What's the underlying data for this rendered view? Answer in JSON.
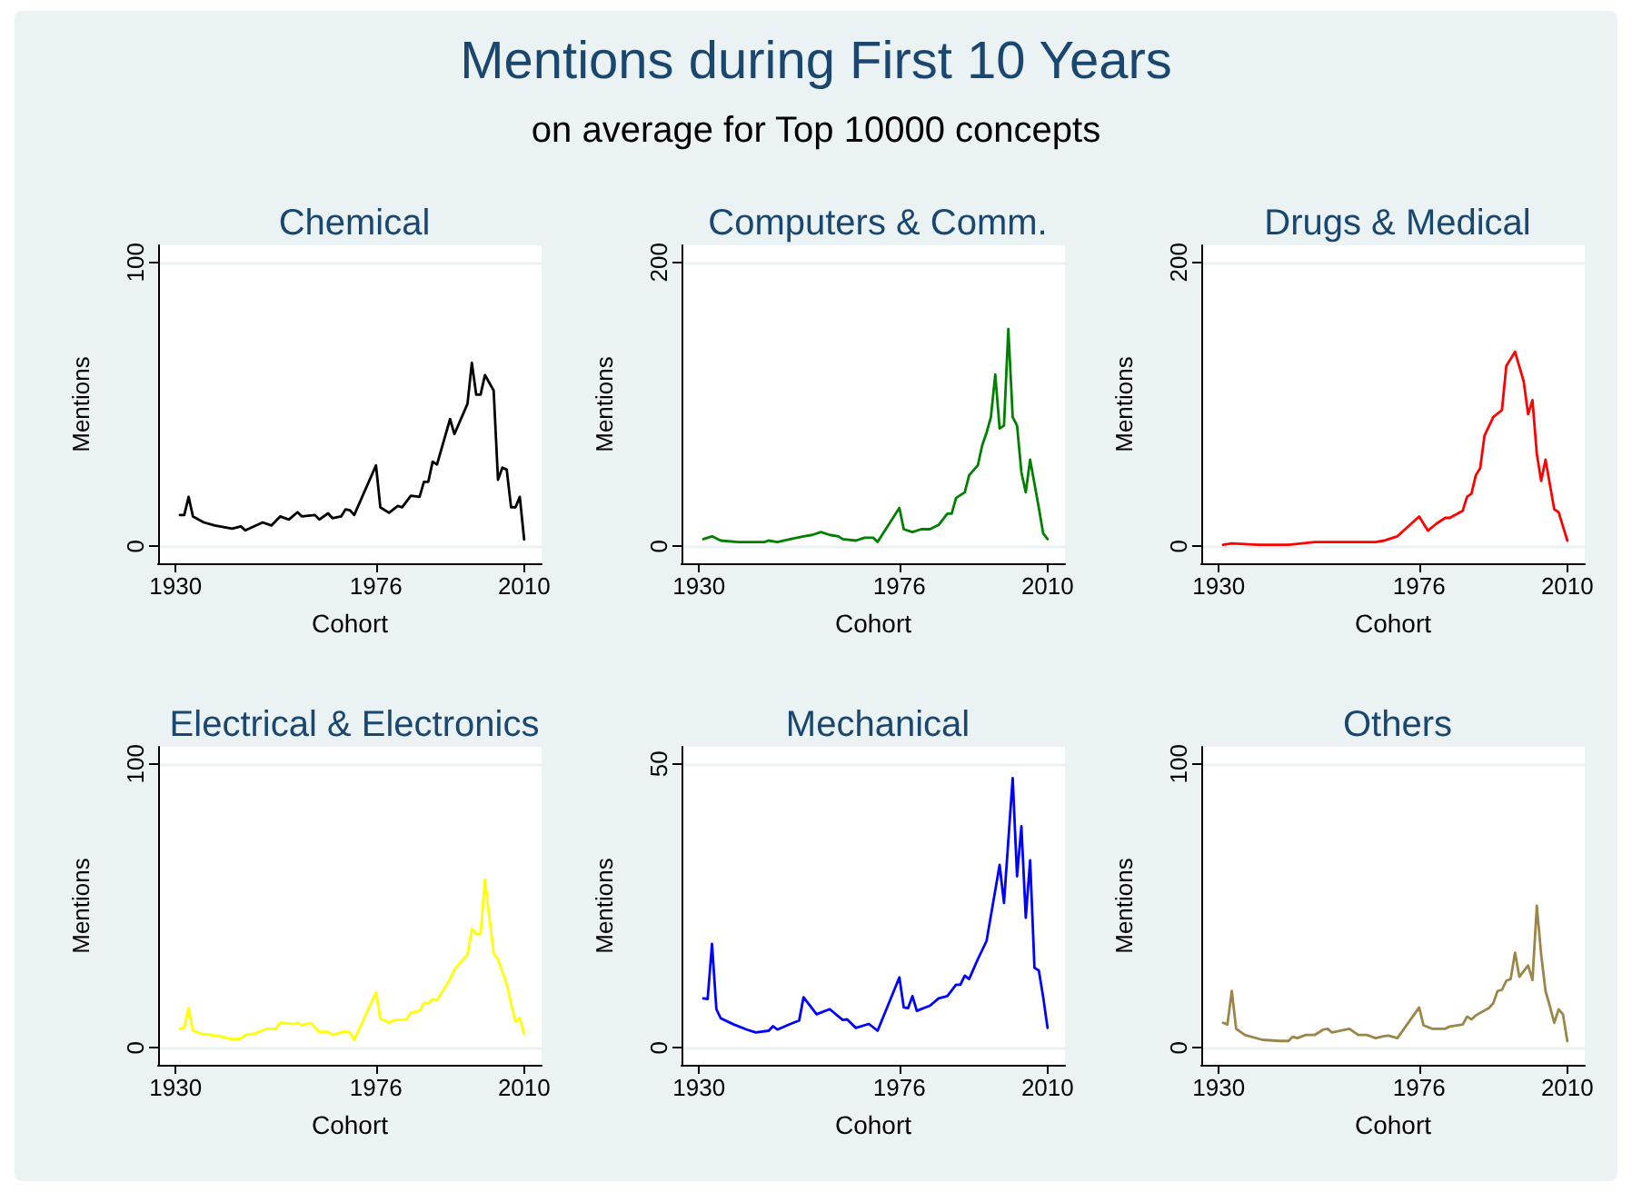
{
  "chart_data": [
    {
      "type": "line",
      "title": "Chemical",
      "xlabel": "Cohort",
      "ylabel": "Mentions",
      "annotations": [
        "Mentions during First 10 Years",
        "on average for Top 10000 concepts"
      ],
      "xlim": [
        1926,
        2014
      ],
      "xticks": [
        1930,
        1976,
        2010
      ],
      "ylim": [
        -6,
        106
      ],
      "yticks": [
        0,
        100
      ],
      "grid": "y",
      "marker": "none",
      "x": [
        1931,
        1932,
        1933,
        1934,
        1936.5,
        1939,
        1943,
        1945,
        1946,
        1950,
        1952,
        1954,
        1956,
        1958,
        1959,
        1962,
        1963,
        1965,
        1966,
        1968,
        1969,
        1970,
        1971,
        1976,
        1977,
        1979,
        1981,
        1982,
        1984,
        1986,
        1987,
        1988,
        1989,
        1990,
        1993,
        1994,
        1997,
        1998,
        1999,
        2000,
        2001,
        2003,
        2004,
        2005,
        2006,
        2007,
        2008,
        2009,
        2010
      ],
      "series": [
        {
          "color": "#000000",
          "values": [
            11,
            11,
            17.4,
            10.5,
            8.4,
            7.3,
            6.2,
            7,
            5.6,
            8.4,
            7.3,
            10.5,
            9.4,
            12,
            10.5,
            11,
            9.4,
            11.6,
            9.9,
            10.5,
            13,
            12.7,
            11,
            28.5,
            13.7,
            11.8,
            14.2,
            13.7,
            17.8,
            17.4,
            22.7,
            22.7,
            29.8,
            28.8,
            44.8,
            39.5,
            50.2,
            64.6,
            53.4,
            53.4,
            60.3,
            54.9,
            23.4,
            27.7,
            27,
            13.7,
            13.7,
            17.4,
            2.4
          ]
        }
      ]
    },
    {
      "type": "line",
      "title": "Computers & Comm.",
      "xlabel": "Cohort",
      "ylabel": "Mentions",
      "xlim": [
        1926,
        2014
      ],
      "xticks": [
        1930,
        1976,
        2010
      ],
      "ylim": [
        -12,
        212
      ],
      "yticks": [
        0,
        200
      ],
      "grid": "y",
      "marker": "none",
      "x": [
        1931,
        1933,
        1935,
        1939,
        1945,
        1946,
        1948,
        1951,
        1954,
        1956,
        1958,
        1960,
        1962,
        1963,
        1966,
        1968,
        1970,
        1971,
        1976,
        1977,
        1979,
        1981,
        1983,
        1985,
        1987,
        1988,
        1989,
        1991,
        1992,
        1994,
        1995,
        1996,
        1997,
        1998,
        1999,
        2000,
        2001,
        2002,
        2003,
        2004,
        2005,
        2006,
        2008,
        2009,
        2010
      ],
      "series": [
        {
          "color": "#008000",
          "values": [
            5,
            7,
            4,
            3,
            3,
            4,
            3,
            5,
            7,
            8,
            10,
            8,
            7,
            5,
            4,
            6,
            6,
            3,
            27,
            12,
            10,
            12,
            12,
            15,
            23,
            23,
            34,
            38,
            50,
            57,
            71,
            80,
            91,
            121,
            83,
            85,
            153,
            91,
            85,
            52,
            38,
            61,
            27,
            9,
            5
          ]
        }
      ]
    },
    {
      "type": "line",
      "title": "Drugs & Medical",
      "xlabel": "Cohort",
      "ylabel": "Mentions",
      "xlim": [
        1926,
        2014
      ],
      "xticks": [
        1930,
        1976,
        2010
      ],
      "ylim": [
        -12,
        212
      ],
      "yticks": [
        0,
        200
      ],
      "grid": "y",
      "marker": "none",
      "x": [
        1931,
        1933,
        1939,
        1946,
        1952,
        1959,
        1966,
        1968,
        1970,
        1971,
        1976,
        1978,
        1980,
        1982,
        1983,
        1986,
        1987,
        1988,
        1989,
        1990,
        1991,
        1993,
        1995,
        1996,
        1998,
        2000,
        2001,
        2002,
        2003,
        2004,
        2005,
        2007,
        2008,
        2009,
        2010
      ],
      "series": [
        {
          "color": "#ff0000",
          "values": [
            1,
            2,
            1,
            1,
            3,
            3,
            3,
            4,
            6,
            7,
            21,
            11,
            16,
            20,
            20,
            25,
            35,
            37,
            50,
            55,
            78,
            91,
            96,
            127,
            137,
            116,
            93,
            103,
            65,
            46,
            61,
            26,
            24,
            14,
            4
          ]
        }
      ]
    },
    {
      "type": "line",
      "title": "Electrical & Electronics",
      "xlabel": "Cohort",
      "ylabel": "Mentions",
      "xlim": [
        1926,
        2014
      ],
      "xticks": [
        1930,
        1976,
        2010
      ],
      "ylim": [
        -6,
        106
      ],
      "yticks": [
        0,
        100
      ],
      "grid": "y",
      "marker": "none",
      "x": [
        1931,
        1932,
        1933,
        1934,
        1936,
        1940,
        1943,
        1945,
        1946,
        1948,
        1951,
        1953,
        1954,
        1957,
        1958,
        1959,
        1961,
        1963,
        1965,
        1966,
        1969,
        1970,
        1971,
        1976,
        1977,
        1979,
        1980,
        1983,
        1984,
        1986,
        1987,
        1988,
        1989,
        1990,
        1993,
        1994,
        1996,
        1997,
        1998,
        1999,
        2000,
        2001,
        2003,
        2004,
        2006,
        2007,
        2008,
        2009,
        2010
      ],
      "series": [
        {
          "color": "#ffff00",
          "values": [
            6.7,
            7.1,
            14,
            6,
            4.9,
            4.1,
            3,
            3.2,
            4.5,
            4.9,
            6.7,
            6.7,
            8.8,
            8.4,
            8.8,
            7.9,
            8.8,
            5.6,
            5.6,
            4.5,
            5.8,
            5.4,
            2.8,
            19.5,
            10.3,
            8.8,
            9.7,
            10,
            12.4,
            13,
            15.7,
            15.7,
            17.2,
            16.7,
            24.2,
            27.5,
            31.1,
            32.8,
            41.8,
            40.1,
            40.1,
            59.2,
            33.3,
            31.1,
            22.5,
            15.7,
            9.2,
            10.5,
            4.9
          ]
        }
      ]
    },
    {
      "type": "line",
      "title": "Mechanical",
      "xlabel": "Cohort",
      "ylabel": "Mentions",
      "xlim": [
        1926,
        2014
      ],
      "xticks": [
        1930,
        1976,
        2010
      ],
      "ylim": [
        -3,
        53
      ],
      "yticks": [
        0,
        50
      ],
      "grid": "y",
      "marker": "none",
      "x": [
        1931,
        1932,
        1933,
        1934,
        1935,
        1938,
        1941,
        1943,
        1946,
        1947,
        1948,
        1951,
        1953,
        1954,
        1957,
        1960,
        1963,
        1964,
        1966,
        1969,
        1971,
        1976,
        1977,
        1978,
        1979,
        1980,
        1983,
        1985,
        1987,
        1989,
        1990,
        1991,
        1992,
        1994,
        1996,
        1999,
        2000,
        2002,
        2003,
        2004,
        2005,
        2006,
        2007,
        2008,
        2009,
        2010
      ],
      "series": [
        {
          "color": "#0000ff",
          "values": [
            8.7,
            8.6,
            18.3,
            6.8,
            5.2,
            4.1,
            3.2,
            2.7,
            3,
            3.8,
            3.2,
            4.2,
            4.8,
            8.9,
            5.9,
            6.8,
            4.9,
            5,
            3.5,
            4.2,
            3,
            12.4,
            7.1,
            7,
            9.1,
            6.5,
            7.4,
            8.7,
            9.1,
            11.1,
            11.1,
            12.7,
            12.1,
            15.6,
            18.8,
            32.2,
            25.5,
            47.5,
            30.2,
            39,
            22.9,
            33,
            14.1,
            13.6,
            8.9,
            3.5
          ]
        }
      ]
    },
    {
      "type": "line",
      "title": "Others",
      "xlabel": "Cohort",
      "ylabel": "Mentions",
      "xlim": [
        1926,
        2014
      ],
      "xticks": [
        1930,
        1976,
        2010
      ],
      "ylim": [
        -6,
        106
      ],
      "yticks": [
        0,
        100
      ],
      "grid": "y",
      "marker": "none",
      "x": [
        1931,
        1932,
        1933,
        1934,
        1936,
        1940,
        1944,
        1946,
        1947,
        1948,
        1950,
        1952,
        1954,
        1955,
        1956,
        1960,
        1962,
        1964,
        1966,
        1968,
        1969,
        1971,
        1976,
        1977,
        1979,
        1982,
        1983,
        1986,
        1987,
        1988,
        1989,
        1992,
        1993,
        1994,
        1995,
        1996,
        1997,
        1998,
        1999,
        2001,
        2002,
        2003,
        2004,
        2005,
        2006,
        2007,
        2008,
        2009,
        2010
      ],
      "series": [
        {
          "color": "#9b8548",
          "values": [
            8.8,
            8.2,
            20,
            6.7,
            4.5,
            2.8,
            2.4,
            2.4,
            3.9,
            3.4,
            4.5,
            4.5,
            6.4,
            6.7,
            5.4,
            6.7,
            4.5,
            4.5,
            3.4,
            4.1,
            4.3,
            3.4,
            14.2,
            7.9,
            6.7,
            6.7,
            7.5,
            8.2,
            11,
            10,
            11.4,
            14,
            15.7,
            20,
            20.4,
            23.6,
            24.2,
            33.5,
            25,
            29,
            23.8,
            50,
            32.8,
            20,
            14.6,
            8.8,
            13.5,
            11.8,
            2.4
          ]
        }
      ]
    }
  ]
}
